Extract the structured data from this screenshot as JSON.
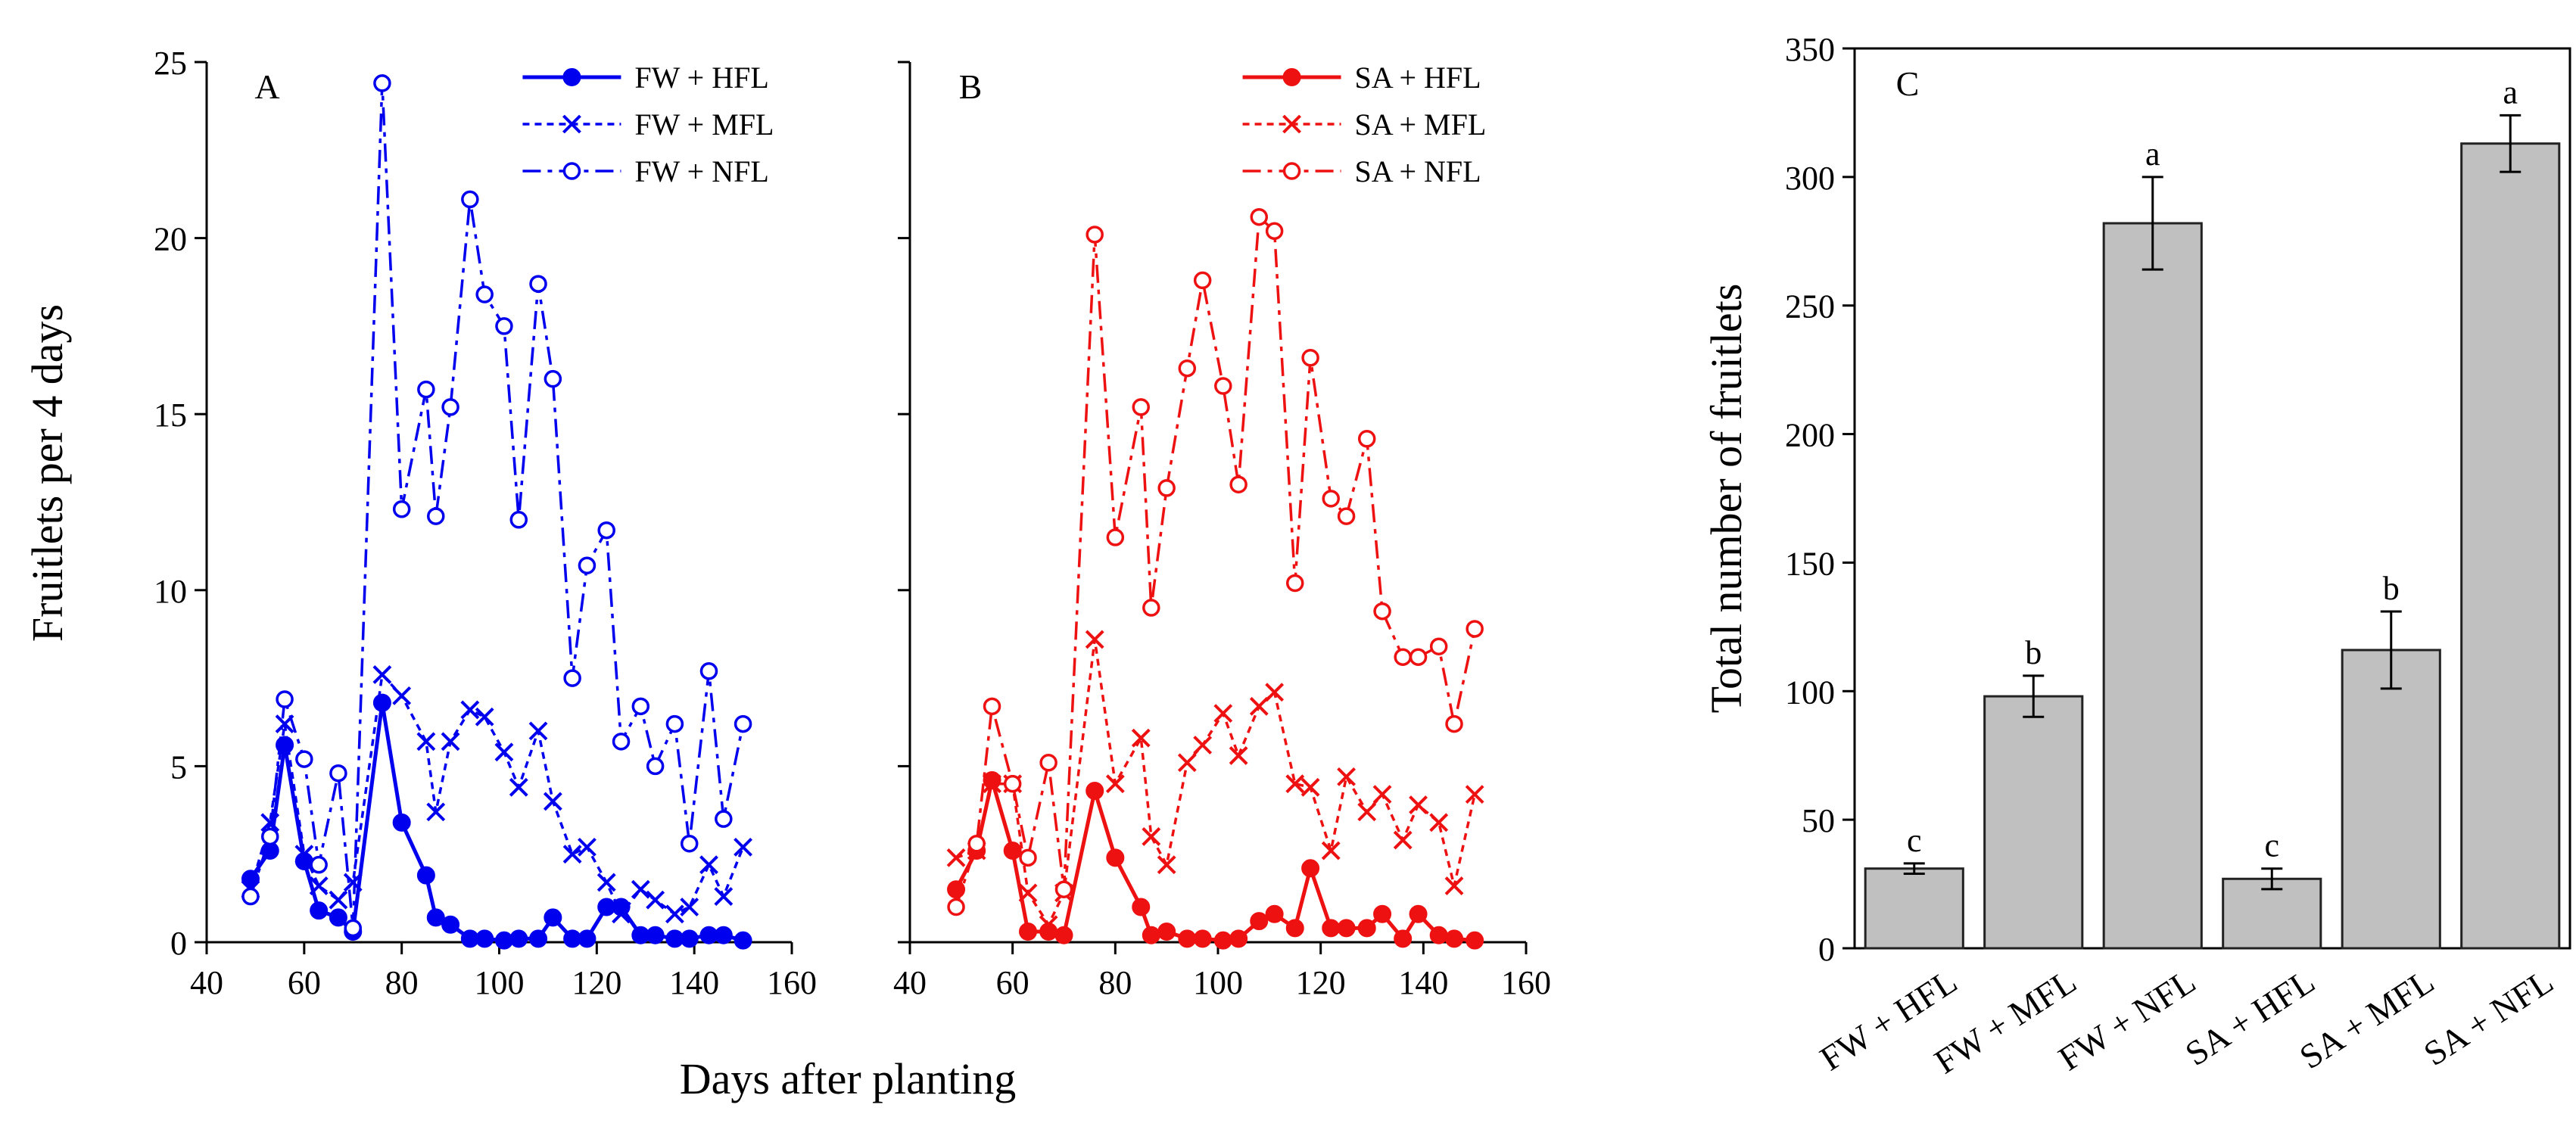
{
  "figure": {
    "shared_xlabel": "Days after planting",
    "shared_ylabel": "Fruitlets per 4 days"
  },
  "chart_data": [
    {
      "type": "line",
      "panel_label": "A",
      "title": "",
      "xlabel": "Days after planting",
      "ylabel": "Fruitlets per 4 days",
      "xlim": [
        40,
        160
      ],
      "ylim": [
        0,
        25
      ],
      "xticks": [
        40,
        60,
        80,
        100,
        120,
        140,
        160
      ],
      "yticks": [
        0,
        5,
        10,
        15,
        20,
        25
      ],
      "legend_position": "top-right",
      "color": "#0000ee",
      "series": [
        {
          "name": "FW + HFL",
          "style": "solid",
          "marker": "filled-circle",
          "x": [
            49,
            53,
            56,
            60,
            63,
            67,
            70,
            76,
            80,
            85,
            87,
            90,
            94,
            97,
            101,
            104,
            108,
            111,
            115,
            118,
            122,
            125,
            129,
            132,
            136,
            139,
            143,
            146,
            150
          ],
          "y": [
            1.8,
            2.6,
            5.6,
            2.3,
            0.9,
            0.7,
            0.3,
            6.8,
            3.4,
            1.9,
            0.7,
            0.5,
            0.1,
            0.1,
            0.05,
            0.1,
            0.1,
            0.7,
            0.1,
            0.1,
            1.0,
            1.0,
            0.2,
            0.2,
            0.1,
            0.1,
            0.2,
            0.2,
            0.05
          ]
        },
        {
          "name": "FW + MFL",
          "style": "dotted",
          "marker": "x",
          "x": [
            49,
            53,
            56,
            60,
            63,
            67,
            70,
            76,
            80,
            85,
            87,
            90,
            94,
            97,
            101,
            104,
            108,
            111,
            115,
            118,
            122,
            125,
            129,
            132,
            136,
            139,
            143,
            146,
            150
          ],
          "y": [
            1.5,
            3.4,
            6.2,
            2.5,
            1.6,
            1.2,
            1.7,
            7.6,
            7.0,
            5.7,
            3.7,
            5.7,
            6.6,
            6.4,
            5.4,
            4.4,
            6.0,
            4.0,
            2.5,
            2.7,
            1.7,
            0.8,
            1.5,
            1.2,
            0.8,
            1.0,
            2.2,
            1.3,
            2.7
          ]
        },
        {
          "name": "FW + NFL",
          "style": "dash-dot",
          "marker": "open-circle",
          "x": [
            49,
            53,
            56,
            60,
            63,
            67,
            70,
            76,
            80,
            85,
            87,
            90,
            94,
            97,
            101,
            104,
            108,
            111,
            115,
            118,
            122,
            125,
            129,
            132,
            136,
            139,
            143,
            146,
            150
          ],
          "y": [
            1.3,
            3.0,
            6.9,
            5.2,
            2.2,
            4.8,
            0.4,
            24.4,
            12.3,
            15.7,
            12.1,
            15.2,
            21.1,
            18.4,
            17.5,
            12.0,
            18.7,
            16.0,
            7.5,
            10.7,
            11.7,
            5.7,
            6.7,
            5.0,
            6.2,
            2.8,
            7.7,
            3.5,
            6.2
          ]
        }
      ]
    },
    {
      "type": "line",
      "panel_label": "B",
      "title": "",
      "xlabel": "Days after planting",
      "ylabel": "Fruitlets per 4 days",
      "xlim": [
        40,
        160
      ],
      "ylim": [
        0,
        25
      ],
      "xticks": [
        40,
        60,
        80,
        100,
        120,
        140,
        160
      ],
      "yticks": [
        0,
        5,
        10,
        15,
        20,
        25
      ],
      "legend_position": "top-right",
      "color": "#ee1111",
      "series": [
        {
          "name": "SA + HFL",
          "style": "solid",
          "marker": "filled-circle",
          "x": [
            49,
            53,
            56,
            60,
            63,
            67,
            70,
            76,
            80,
            85,
            87,
            90,
            94,
            97,
            101,
            104,
            108,
            111,
            115,
            118,
            122,
            125,
            129,
            132,
            136,
            139,
            143,
            146,
            150
          ],
          "y": [
            1.5,
            2.6,
            4.6,
            2.6,
            0.3,
            0.3,
            0.2,
            4.3,
            2.4,
            1.0,
            0.2,
            0.3,
            0.1,
            0.1,
            0.05,
            0.1,
            0.6,
            0.8,
            0.4,
            2.1,
            0.4,
            0.4,
            0.4,
            0.8,
            0.1,
            0.8,
            0.2,
            0.1,
            0.05
          ]
        },
        {
          "name": "SA + MFL",
          "style": "dotted",
          "marker": "x",
          "x": [
            49,
            53,
            56,
            60,
            63,
            67,
            70,
            76,
            80,
            85,
            87,
            90,
            94,
            97,
            101,
            104,
            108,
            111,
            115,
            118,
            122,
            125,
            129,
            132,
            136,
            139,
            143,
            146,
            150
          ],
          "y": [
            2.4,
            2.6,
            4.5,
            4.5,
            1.4,
            0.5,
            1.4,
            8.6,
            4.5,
            5.8,
            3.0,
            2.2,
            5.1,
            5.6,
            6.5,
            5.3,
            6.7,
            7.1,
            4.5,
            4.4,
            2.6,
            4.7,
            3.7,
            4.2,
            2.9,
            3.9,
            3.4,
            1.6,
            4.2
          ]
        },
        {
          "name": "SA + NFL",
          "style": "dash-dot",
          "marker": "open-circle",
          "x": [
            49,
            53,
            56,
            60,
            63,
            67,
            70,
            76,
            80,
            85,
            87,
            90,
            94,
            97,
            101,
            104,
            108,
            111,
            115,
            118,
            122,
            125,
            129,
            132,
            136,
            139,
            143,
            146,
            150
          ],
          "y": [
            1.0,
            2.8,
            6.7,
            4.5,
            2.4,
            5.1,
            1.5,
            20.1,
            11.5,
            15.2,
            9.5,
            12.9,
            16.3,
            18.8,
            15.8,
            13.0,
            20.6,
            20.2,
            10.2,
            16.6,
            12.6,
            12.1,
            14.3,
            9.4,
            8.1,
            8.1,
            8.4,
            6.2,
            8.9
          ]
        }
      ]
    },
    {
      "type": "bar",
      "panel_label": "C",
      "title": "",
      "xlabel": "",
      "ylabel": "Total number of fruitlets",
      "ylim": [
        0,
        350
      ],
      "yticks": [
        0,
        50,
        100,
        150,
        200,
        250,
        300,
        350
      ],
      "categories": [
        "FW + HFL",
        "FW + MFL",
        "FW + NFL",
        "SA + HFL",
        "SA + MFL",
        "SA + NFL"
      ],
      "values": [
        31,
        98,
        282,
        27,
        116,
        313
      ],
      "errors": [
        2,
        8,
        18,
        4,
        15,
        11
      ],
      "significance_letters": [
        "c",
        "b",
        "a",
        "c",
        "b",
        "a"
      ],
      "bar_color": "#c0c0c0"
    }
  ]
}
